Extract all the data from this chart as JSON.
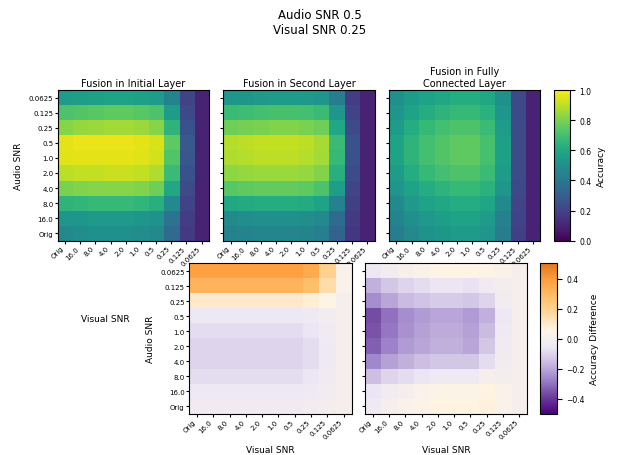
{
  "title": "Audio SNR 0.5\nVisual SNR 0.25",
  "snr_labels_y": [
    "0.0625",
    "0.125",
    "0.25",
    "0.5",
    "1.0",
    "2.0",
    "4.0",
    "8.0",
    "16.0",
    "Orig"
  ],
  "snr_labels_x": [
    "Orig",
    "16.0",
    "8.0",
    "4.0",
    "2.0",
    "1.0",
    "0.5",
    "0.25",
    "0.125",
    "0.0625"
  ],
  "top_titles": [
    "Fusion in Initial Layer",
    "Fusion in Second Layer",
    "Fusion in Fully\nConnected Layer"
  ],
  "colorbar_label_top": "Accuracy",
  "colorbar_label_bot": "Accuracy Difference",
  "xlabel": "Visual SNR",
  "ylabel": "Audio SNR",
  "Z_init": [
    [
      0.55,
      0.56,
      0.57,
      0.58,
      0.58,
      0.57,
      0.55,
      0.45,
      0.2,
      0.1
    ],
    [
      0.72,
      0.73,
      0.74,
      0.75,
      0.75,
      0.74,
      0.72,
      0.55,
      0.22,
      0.1
    ],
    [
      0.82,
      0.84,
      0.85,
      0.86,
      0.86,
      0.85,
      0.82,
      0.65,
      0.25,
      0.1
    ],
    [
      0.96,
      0.97,
      0.97,
      0.97,
      0.97,
      0.96,
      0.94,
      0.75,
      0.28,
      0.1
    ],
    [
      0.95,
      0.96,
      0.96,
      0.96,
      0.96,
      0.95,
      0.93,
      0.73,
      0.27,
      0.1
    ],
    [
      0.9,
      0.91,
      0.91,
      0.92,
      0.92,
      0.91,
      0.88,
      0.68,
      0.25,
      0.1
    ],
    [
      0.8,
      0.81,
      0.82,
      0.82,
      0.82,
      0.81,
      0.78,
      0.6,
      0.23,
      0.1
    ],
    [
      0.65,
      0.66,
      0.67,
      0.67,
      0.67,
      0.66,
      0.63,
      0.48,
      0.2,
      0.1
    ],
    [
      0.52,
      0.53,
      0.54,
      0.54,
      0.54,
      0.53,
      0.51,
      0.38,
      0.18,
      0.1
    ],
    [
      0.48,
      0.49,
      0.5,
      0.5,
      0.5,
      0.49,
      0.47,
      0.35,
      0.17,
      0.1
    ]
  ],
  "Z_sec": [
    [
      0.52,
      0.53,
      0.54,
      0.55,
      0.55,
      0.54,
      0.52,
      0.42,
      0.18,
      0.1
    ],
    [
      0.68,
      0.69,
      0.7,
      0.71,
      0.71,
      0.7,
      0.68,
      0.52,
      0.2,
      0.1
    ],
    [
      0.78,
      0.79,
      0.8,
      0.81,
      0.81,
      0.8,
      0.78,
      0.6,
      0.23,
      0.1
    ],
    [
      0.89,
      0.9,
      0.91,
      0.91,
      0.91,
      0.9,
      0.87,
      0.68,
      0.25,
      0.1
    ],
    [
      0.88,
      0.89,
      0.9,
      0.9,
      0.9,
      0.89,
      0.86,
      0.67,
      0.25,
      0.1
    ],
    [
      0.83,
      0.84,
      0.85,
      0.85,
      0.85,
      0.84,
      0.81,
      0.63,
      0.23,
      0.1
    ],
    [
      0.74,
      0.75,
      0.76,
      0.76,
      0.76,
      0.75,
      0.72,
      0.56,
      0.21,
      0.1
    ],
    [
      0.6,
      0.61,
      0.62,
      0.62,
      0.62,
      0.61,
      0.58,
      0.44,
      0.19,
      0.1
    ],
    [
      0.48,
      0.49,
      0.5,
      0.5,
      0.5,
      0.49,
      0.47,
      0.35,
      0.17,
      0.1
    ],
    [
      0.44,
      0.45,
      0.46,
      0.46,
      0.46,
      0.45,
      0.43,
      0.32,
      0.16,
      0.1
    ]
  ],
  "Z_fc": [
    [
      0.5,
      0.55,
      0.58,
      0.6,
      0.62,
      0.62,
      0.6,
      0.5,
      0.22,
      0.1
    ],
    [
      0.52,
      0.58,
      0.62,
      0.65,
      0.67,
      0.67,
      0.64,
      0.52,
      0.22,
      0.1
    ],
    [
      0.55,
      0.62,
      0.67,
      0.7,
      0.72,
      0.72,
      0.68,
      0.55,
      0.23,
      0.1
    ],
    [
      0.58,
      0.65,
      0.7,
      0.73,
      0.75,
      0.75,
      0.71,
      0.57,
      0.23,
      0.1
    ],
    [
      0.58,
      0.65,
      0.7,
      0.73,
      0.75,
      0.75,
      0.71,
      0.57,
      0.23,
      0.1
    ],
    [
      0.55,
      0.62,
      0.67,
      0.7,
      0.72,
      0.72,
      0.68,
      0.55,
      0.23,
      0.1
    ],
    [
      0.52,
      0.58,
      0.62,
      0.65,
      0.67,
      0.67,
      0.64,
      0.52,
      0.22,
      0.1
    ],
    [
      0.48,
      0.54,
      0.58,
      0.6,
      0.62,
      0.62,
      0.59,
      0.48,
      0.21,
      0.1
    ],
    [
      0.45,
      0.5,
      0.54,
      0.56,
      0.58,
      0.58,
      0.55,
      0.44,
      0.2,
      0.1
    ],
    [
      0.42,
      0.47,
      0.51,
      0.53,
      0.55,
      0.55,
      0.52,
      0.42,
      0.19,
      0.1
    ]
  ],
  "vmin_acc": 0.0,
  "vmax_acc": 1.0,
  "vmin_diff": -0.5,
  "vmax_diff": 0.5,
  "cbar_ticks_acc": [
    0.0,
    0.2,
    0.4,
    0.6,
    0.8,
    1.0
  ],
  "cbar_ticks_diff": [
    -0.4,
    -0.2,
    0.0,
    0.2,
    0.4
  ]
}
